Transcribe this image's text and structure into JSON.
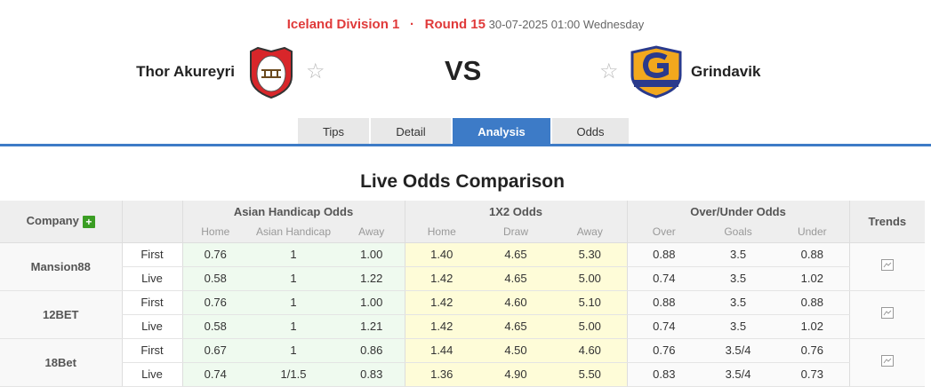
{
  "match": {
    "league": "Iceland Division 1",
    "separator": "·",
    "round": "Round 15",
    "datetime": "30-07-2025 01:00 Wednesday",
    "home": "Thor Akureyri",
    "away": "Grindavik",
    "vs": "VS"
  },
  "tabs": [
    {
      "label": "Tips"
    },
    {
      "label": "Detail"
    },
    {
      "label": "Analysis",
      "active": true
    },
    {
      "label": "Odds"
    }
  ],
  "section_title": "Live Odds Comparison",
  "table": {
    "headers": {
      "company": "Company",
      "asian": "Asian Handicap Odds",
      "x12": "1X2 Odds",
      "ou": "Over/Under Odds",
      "trends": "Trends"
    },
    "sub": [
      "Home",
      "Asian Handicap",
      "Away",
      "Home",
      "Draw",
      "Away",
      "Over",
      "Goals",
      "Under"
    ],
    "rows": [
      {
        "company": "Mansion88",
        "first": {
          "label": "First",
          "v": [
            "0.76",
            "1",
            "1.00",
            "1.40",
            "4.65",
            "5.30",
            "0.88",
            "3.5",
            "0.88"
          ]
        },
        "live": {
          "label": "Live",
          "v": [
            "0.58",
            "1",
            "1.22",
            "1.42",
            "4.65",
            "5.00",
            "0.74",
            "3.5",
            "1.02"
          ]
        }
      },
      {
        "company": "12BET",
        "first": {
          "label": "First",
          "v": [
            "0.76",
            "1",
            "1.00",
            "1.42",
            "4.60",
            "5.10",
            "0.88",
            "3.5",
            "0.88"
          ]
        },
        "live": {
          "label": "Live",
          "v": [
            "0.58",
            "1",
            "1.21",
            "1.42",
            "4.65",
            "5.00",
            "0.74",
            "3.5",
            "1.02"
          ]
        }
      },
      {
        "company": "18Bet",
        "first": {
          "label": "First",
          "v": [
            "0.67",
            "1",
            "0.86",
            "1.44",
            "4.50",
            "4.60",
            "0.76",
            "3.5/4",
            "0.76"
          ]
        },
        "live": {
          "label": "Live",
          "v": [
            "0.74",
            "1/1.5",
            "0.83",
            "1.36",
            "4.90",
            "5.50",
            "0.83",
            "3.5/4",
            "0.73"
          ]
        }
      }
    ]
  },
  "colors": {
    "accent": "#3d7bc7",
    "league": "#e03a3a",
    "asian_bg": "#effaef",
    "x12_bg": "#fefcd8",
    "plus": "#3a9d23"
  },
  "icons": {
    "plus": "plus-icon",
    "trend": "trend-chart-icon",
    "star": "star-outline-icon"
  }
}
